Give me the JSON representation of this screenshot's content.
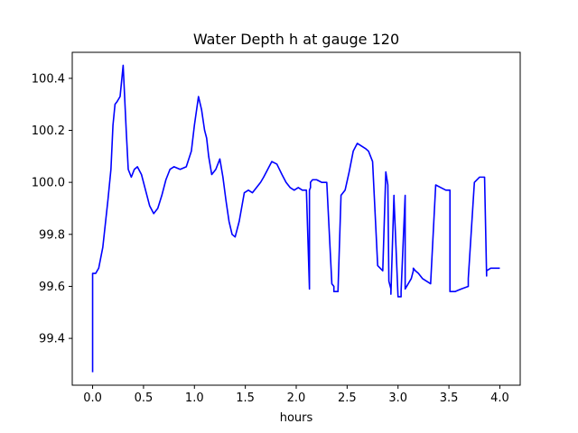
{
  "chart_data": {
    "type": "line",
    "title": "Water Depth h at gauge 120",
    "xlabel": "hours",
    "ylabel": "",
    "xlim": [
      -0.2,
      4.2
    ],
    "ylim": [
      99.22,
      100.5
    ],
    "grid": false,
    "legend": "none",
    "x_ticks": [
      0.0,
      0.5,
      1.0,
      1.5,
      2.0,
      2.5,
      3.0,
      3.5,
      4.0
    ],
    "x_tick_labels": [
      "0.0",
      "0.5",
      "1.0",
      "1.5",
      "2.0",
      "2.5",
      "3.0",
      "3.5",
      "4.0"
    ],
    "y_ticks": [
      99.4,
      99.6,
      99.8,
      100.0,
      100.2,
      100.4
    ],
    "y_tick_labels": [
      "99.4",
      "99.6",
      "99.8",
      "100.0",
      "100.2",
      "100.4"
    ],
    "series": [
      {
        "color": "#0000ff",
        "x": [
          0.0,
          0.0,
          0.03,
          0.06,
          0.1,
          0.15,
          0.18,
          0.2,
          0.22,
          0.24,
          0.27,
          0.3,
          0.33,
          0.35,
          0.38,
          0.41,
          0.44,
          0.48,
          0.52,
          0.56,
          0.6,
          0.64,
          0.68,
          0.72,
          0.76,
          0.8,
          0.86,
          0.92,
          0.97,
          1.0,
          1.04,
          1.07,
          1.1,
          1.12,
          1.14,
          1.17,
          1.21,
          1.25,
          1.28,
          1.31,
          1.34,
          1.37,
          1.4,
          1.44,
          1.49,
          1.53,
          1.57,
          1.61,
          1.65,
          1.68,
          1.72,
          1.76,
          1.81,
          1.86,
          1.9,
          1.94,
          1.98,
          2.02,
          2.06,
          2.1,
          2.13,
          2.13,
          2.14,
          2.14,
          2.16,
          2.2,
          2.25,
          2.3,
          2.35,
          2.37,
          2.37,
          2.41,
          2.44,
          2.44,
          2.48,
          2.52,
          2.56,
          2.6,
          2.64,
          2.68,
          2.71,
          2.75,
          2.8,
          2.85,
          2.88,
          2.9,
          2.91,
          2.93,
          2.93,
          2.96,
          2.96,
          3.0,
          3.03,
          3.03,
          3.07,
          3.07,
          3.1,
          3.13,
          3.15,
          3.15,
          3.17,
          3.2,
          3.24,
          3.28,
          3.32,
          3.37,
          3.42,
          3.47,
          3.51,
          3.51,
          3.56,
          3.62,
          3.69,
          3.69,
          3.75,
          3.8,
          3.85,
          3.87,
          3.87,
          3.91,
          3.91,
          3.95,
          4.0
        ],
        "y": [
          99.27,
          99.65,
          99.65,
          99.67,
          99.75,
          99.93,
          100.05,
          100.22,
          100.3,
          100.31,
          100.33,
          100.45,
          100.2,
          100.05,
          100.02,
          100.05,
          100.06,
          100.03,
          99.97,
          99.91,
          99.88,
          99.9,
          99.95,
          100.01,
          100.05,
          100.06,
          100.05,
          100.06,
          100.12,
          100.22,
          100.33,
          100.28,
          100.2,
          100.17,
          100.1,
          100.03,
          100.05,
          100.09,
          100.02,
          99.93,
          99.85,
          99.8,
          99.79,
          99.85,
          99.96,
          99.97,
          99.96,
          99.98,
          100.0,
          100.02,
          100.05,
          100.08,
          100.07,
          100.03,
          100.0,
          99.98,
          99.97,
          99.98,
          99.97,
          99.97,
          99.59,
          99.97,
          99.98,
          100.0,
          100.01,
          100.01,
          100.0,
          100.0,
          99.61,
          99.6,
          99.58,
          99.58,
          99.95,
          99.95,
          99.97,
          100.04,
          100.12,
          100.15,
          100.14,
          100.13,
          100.12,
          100.08,
          99.68,
          99.66,
          100.04,
          99.99,
          99.62,
          99.59,
          99.57,
          99.95,
          99.94,
          99.56,
          99.56,
          99.58,
          99.95,
          99.59,
          99.61,
          99.63,
          99.66,
          99.67,
          99.66,
          99.65,
          99.63,
          99.62,
          99.61,
          99.99,
          99.98,
          99.97,
          99.97,
          99.58,
          99.58,
          99.59,
          99.6,
          99.63,
          100.0,
          100.02,
          100.02,
          99.64,
          99.66,
          99.67,
          99.67,
          99.67,
          99.67
        ]
      }
    ]
  }
}
